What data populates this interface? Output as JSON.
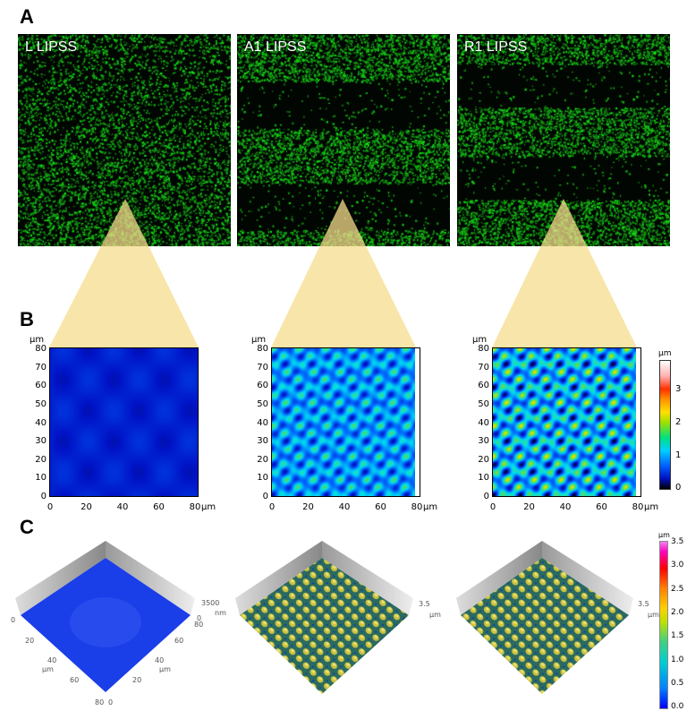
{
  "panels": {
    "a": "A",
    "b": "B",
    "c": "C"
  },
  "panel_a": {
    "images": [
      {
        "label": "L LIPSS"
      },
      {
        "label": "A1 LIPSS"
      },
      {
        "label": "R1 LIPSS"
      }
    ]
  },
  "panel_b": {
    "unit": "µm",
    "ticks": [
      "0",
      "10",
      "20",
      "30",
      "40",
      "50",
      "60",
      "70",
      "80"
    ],
    "xticks": [
      "0",
      "20",
      "40",
      "60",
      "80"
    ],
    "colorbar": {
      "unit": "µm",
      "ticks": [
        "0",
        "1",
        "2",
        "3"
      ]
    }
  },
  "panel_c": {
    "plot1": {
      "z_max": "3500",
      "z_min": "0",
      "z_unit": "nm",
      "x_ticks": [
        "0",
        "20",
        "40",
        "60",
        "80"
      ],
      "y_ticks": [
        "80",
        "60",
        "40",
        "20",
        "0"
      ],
      "unit": "µm"
    },
    "plot2": {
      "z_max": "3.5",
      "z_unit": "µm"
    },
    "plot3": {
      "z_max": "3.5",
      "z_unit": "µm"
    },
    "colorbar": {
      "unit": "µm",
      "ticks": [
        "3.5",
        "3.0",
        "2.5",
        "2.0",
        "1.5",
        "1.0",
        "0.5",
        "0.0"
      ]
    }
  },
  "colors": {
    "highlight": "#f6dc8c",
    "speckle": "#22c81e"
  }
}
